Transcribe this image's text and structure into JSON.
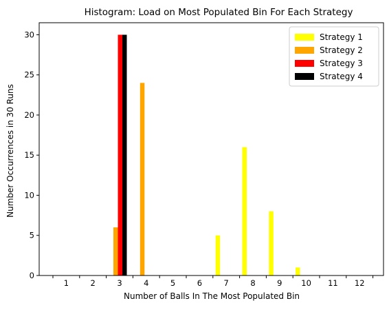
{
  "chart_data": {
    "type": "bar",
    "title": "Histogram: Load on Most Populated Bin For Each Strategy",
    "xlabel": "Number of Balls In The Most Populated Bin",
    "ylabel": "Number Occurrences in 30 Runs",
    "categories": [
      "1",
      "2",
      "3",
      "4",
      "5",
      "6",
      "7",
      "8",
      "9",
      "10",
      "11",
      "12"
    ],
    "ylim": [
      0,
      31.5
    ],
    "yticks": [
      0,
      5,
      10,
      15,
      20,
      25,
      30
    ],
    "grid": false,
    "legend_position": "top-right",
    "series": [
      {
        "name": "Strategy 1",
        "color": "#ffff00",
        "values": [
          0,
          0,
          0,
          0,
          0,
          0,
          5,
          16,
          8,
          1,
          0,
          0
        ]
      },
      {
        "name": "Strategy 2",
        "color": "#ffa500",
        "values": [
          0,
          0,
          6,
          24,
          0,
          0,
          0,
          0,
          0,
          0,
          0,
          0
        ]
      },
      {
        "name": "Strategy 3",
        "color": "#ff0000",
        "values": [
          0,
          0,
          30,
          0,
          0,
          0,
          0,
          0,
          0,
          0,
          0,
          0
        ]
      },
      {
        "name": "Strategy 4",
        "color": "#000000",
        "values": [
          0,
          0,
          30,
          0,
          0,
          0,
          0,
          0,
          0,
          0,
          0,
          0
        ]
      }
    ]
  }
}
